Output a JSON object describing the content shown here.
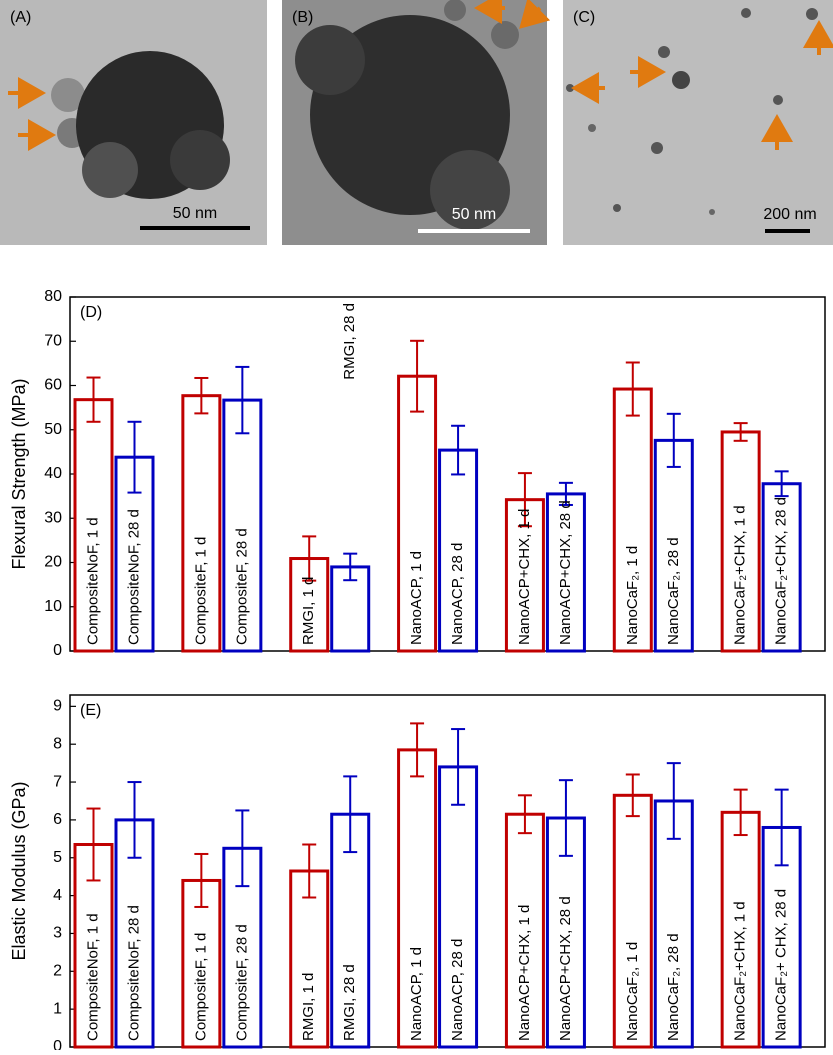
{
  "images": [
    {
      "label": "(A)",
      "scale": "50 nm"
    },
    {
      "label": "(B)",
      "scale": "50 nm"
    },
    {
      "label": "(C)",
      "scale": "200 nm"
    }
  ],
  "chart_data": [
    {
      "type": "bar",
      "panel_label": "(D)",
      "ylabel": "Flexural Strength  (MPa)",
      "ylim": [
        0,
        80
      ],
      "yticks": [
        0,
        10,
        20,
        30,
        40,
        50,
        60,
        70,
        80
      ],
      "series": [
        {
          "color": "#c00000",
          "values": [
            56.8,
            57.7,
            20.9,
            62.1,
            34.2,
            59.2,
            49.5
          ],
          "errors": [
            5,
            4,
            5,
            8,
            6,
            6,
            2
          ],
          "labels": [
            "CompositeNoF, 1 d",
            "CompositeF, 1 d",
            "RMGI, 1 d",
            "NanoACP, 1 d",
            "NanoACP+CHX, 1 d",
            "NanoCaF₂, 1 d",
            "NanoCaF₂+CHX, 1 d"
          ]
        },
        {
          "color": "#0000c0",
          "values": [
            43.8,
            56.7,
            19,
            45.4,
            35.5,
            47.6,
            37.8
          ],
          "errors": [
            8,
            7.5,
            3,
            5.5,
            2.5,
            6,
            2.8
          ],
          "labels": [
            "CompositeNoF, 28 d",
            "CompositeF, 28 d",
            "RMGI, 28 d",
            "NanoACP, 28 d",
            "NanoACP+CHX, 28 d",
            "NanoCaF₂, 28 d",
            "NanoCaF₂+CHX, 28 d"
          ]
        }
      ]
    },
    {
      "type": "bar",
      "panel_label": "(E)",
      "ylabel": "Elastic Modulus  (GPa)",
      "ylim": [
        0,
        9.3
      ],
      "yticks": [
        0,
        1,
        2,
        3,
        4,
        5,
        6,
        7,
        8,
        9
      ],
      "series": [
        {
          "color": "#c00000",
          "values": [
            5.35,
            4.4,
            4.65,
            7.85,
            6.15,
            6.65,
            6.2
          ],
          "errors": [
            0.95,
            0.7,
            0.7,
            0.7,
            0.5,
            0.55,
            0.6
          ],
          "labels": [
            "CompositeNoF, 1 d",
            "CompositeF, 1 d",
            "RMGI, 1 d",
            "NanoACP, 1 d",
            "NanoACP+CHX, 1 d",
            "NanoCaF₂, 1 d",
            "NanoCaF₂+CHX, 1 d"
          ]
        },
        {
          "color": "#0000c0",
          "values": [
            6.0,
            5.25,
            6.15,
            7.4,
            6.05,
            6.5,
            5.8
          ],
          "errors": [
            1.0,
            1.0,
            1.0,
            1.0,
            1.0,
            1.0,
            1.0
          ],
          "labels": [
            "CompositeNoF, 28 d",
            "CompositeF, 28 d",
            "RMGI, 28 d",
            "NanoACP, 28 d",
            "NanoACP+CHX, 28 d",
            "NanoCaF₂, 28 d",
            "NanoCaF₂+ CHX, 28 d"
          ]
        }
      ]
    }
  ]
}
